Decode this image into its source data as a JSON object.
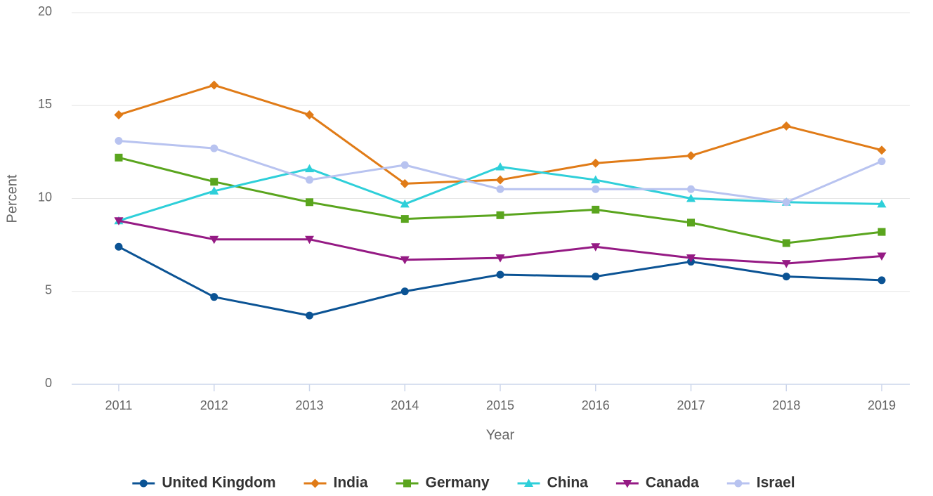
{
  "chart_data": {
    "type": "line",
    "x_label": "Year",
    "y_label": "Percent",
    "categories": [
      "2011",
      "2012",
      "2013",
      "2014",
      "2015",
      "2016",
      "2017",
      "2018",
      "2019"
    ],
    "ylim": [
      0,
      20
    ],
    "yticks": [
      0,
      5,
      10,
      15,
      20
    ],
    "grid": true,
    "legend": "bottom",
    "series": [
      {
        "name": "United Kingdom",
        "color": "#0b5394",
        "marker": "circle",
        "values": [
          7.4,
          4.7,
          3.7,
          5.0,
          5.9,
          5.8,
          6.6,
          5.8,
          5.6
        ]
      },
      {
        "name": "India",
        "color": "#e07b17",
        "marker": "diamond",
        "values": [
          14.5,
          16.1,
          14.5,
          10.8,
          11.0,
          11.9,
          12.3,
          13.9,
          12.6
        ]
      },
      {
        "name": "Germany",
        "color": "#5aa51e",
        "marker": "square",
        "values": [
          12.2,
          10.9,
          9.8,
          8.9,
          9.1,
          9.4,
          8.7,
          7.6,
          8.2
        ]
      },
      {
        "name": "China",
        "color": "#2ecfd9",
        "marker": "triangle",
        "values": [
          8.8,
          10.4,
          11.6,
          9.7,
          11.7,
          11.0,
          10.0,
          9.8,
          9.7
        ]
      },
      {
        "name": "Canada",
        "color": "#951a84",
        "marker": "triangle-down",
        "values": [
          8.8,
          7.8,
          7.8,
          6.7,
          6.8,
          7.4,
          6.8,
          6.5,
          6.9
        ]
      },
      {
        "name": "Israel",
        "color": "#b8c3f0",
        "marker": "circle",
        "values": [
          13.1,
          12.7,
          11.0,
          11.8,
          10.5,
          10.5,
          10.5,
          9.8,
          12.0
        ]
      }
    ]
  }
}
